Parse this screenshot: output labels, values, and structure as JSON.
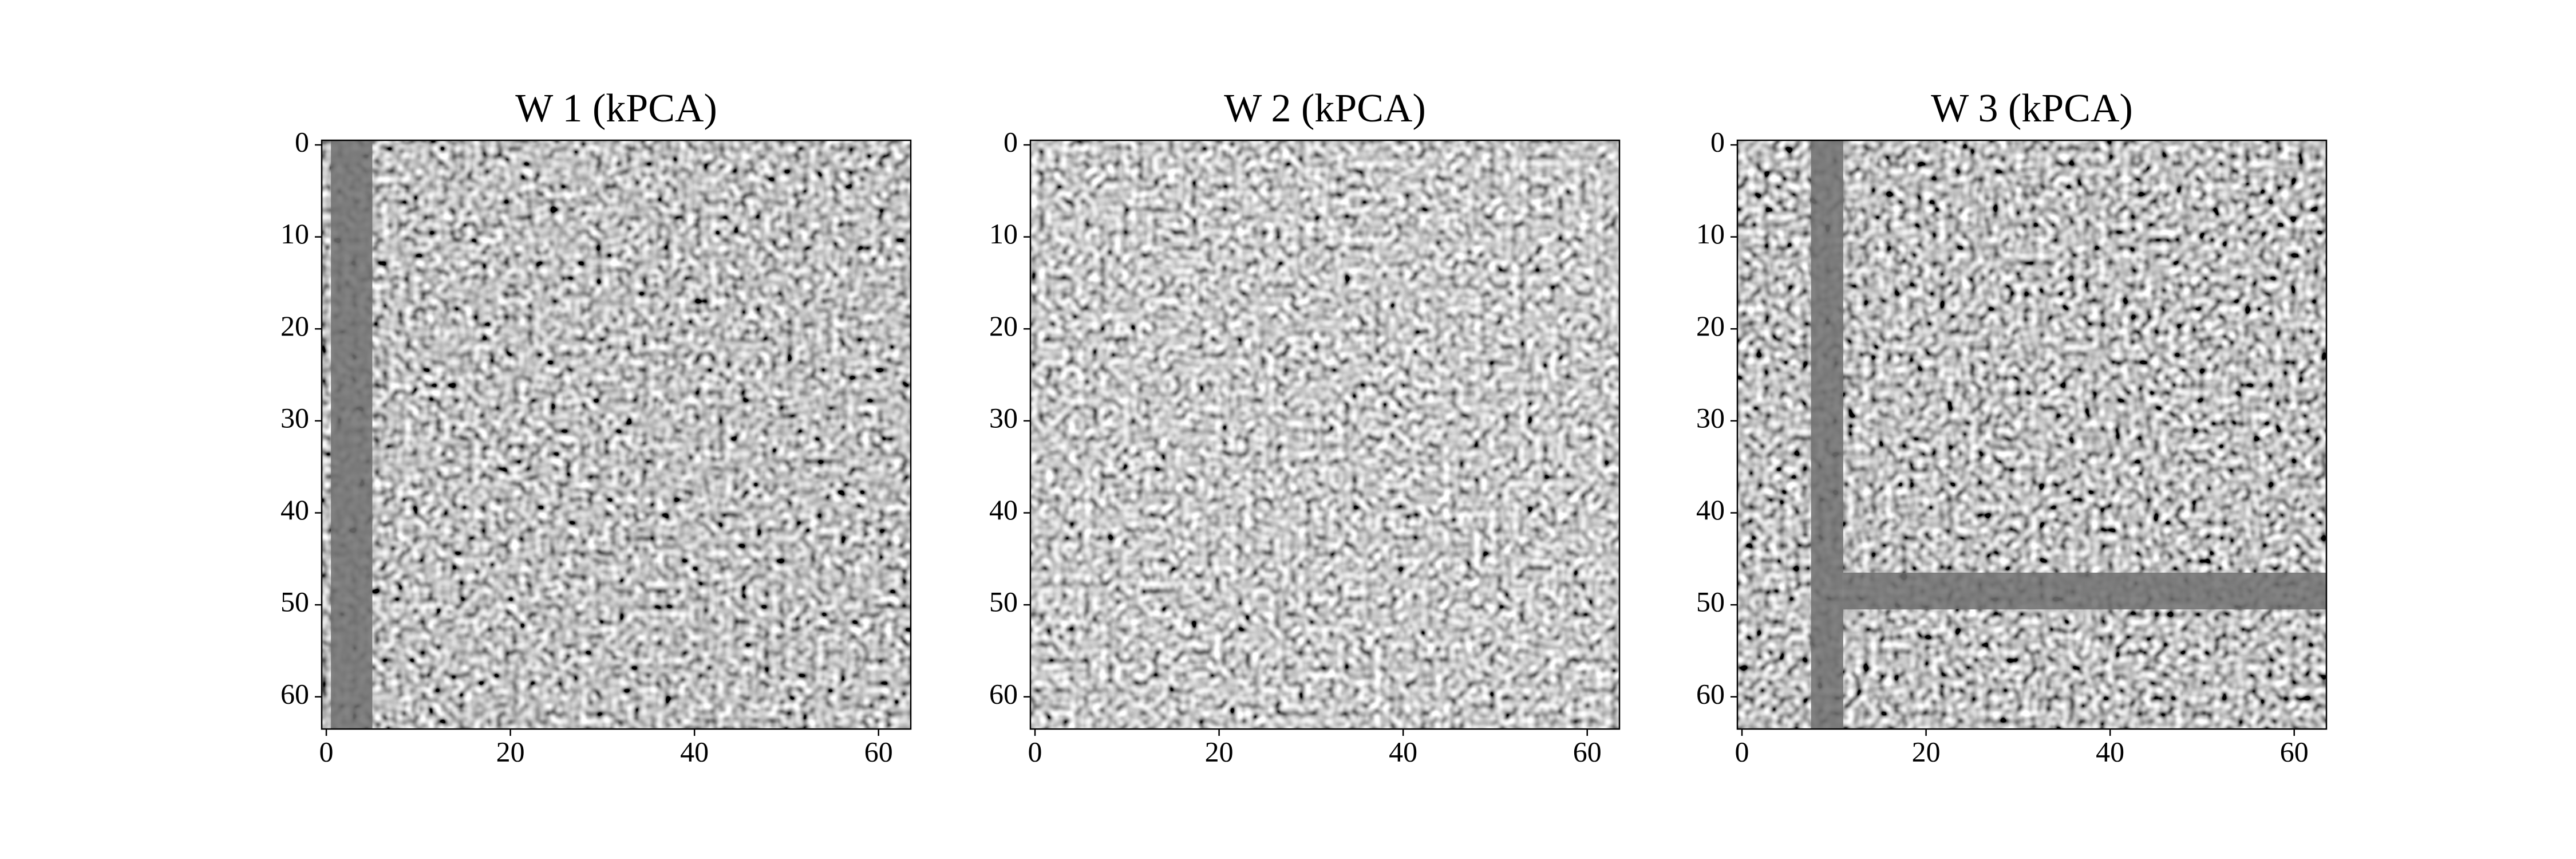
{
  "chart_data": [
    {
      "type": "image",
      "title": "W 1 (kPCA)",
      "cmap": "gray",
      "xlim": [
        -0.5,
        63.5
      ],
      "ylim": [
        63.5,
        -0.5
      ],
      "xticks": [
        0,
        20,
        40,
        60
      ],
      "yticks": [
        0,
        10,
        20,
        30,
        40,
        50,
        60
      ],
      "bands": [
        {
          "x": [
            0.5,
            5
          ],
          "y": [
            63.5,
            -0.5
          ]
        }
      ],
      "band_color": "#6e6e6e"
    },
    {
      "type": "image",
      "title": "W 2 (kPCA)",
      "cmap": "gray",
      "xlim": [
        -0.5,
        63.5
      ],
      "ylim": [
        63.5,
        -0.5
      ],
      "xticks": [
        0,
        20,
        40,
        60
      ],
      "yticks": [
        0,
        10,
        20,
        30,
        40,
        50,
        60
      ]
    },
    {
      "type": "image",
      "title": "W 3 (kPCA)",
      "cmap": "gray",
      "xlim": [
        -0.5,
        63.5
      ],
      "ylim": [
        63.5,
        -0.5
      ],
      "xticks": [
        0,
        20,
        40,
        60
      ],
      "yticks": [
        0,
        10,
        20,
        30,
        40,
        50,
        60
      ],
      "bands": [
        {
          "x": [
            7.5,
            11
          ],
          "y": [
            63.5,
            -0.5
          ]
        },
        {
          "x": [
            11,
            63.5
          ],
          "y": [
            50.5,
            46.5
          ]
        }
      ],
      "band_color": "#6e6e6e"
    }
  ]
}
